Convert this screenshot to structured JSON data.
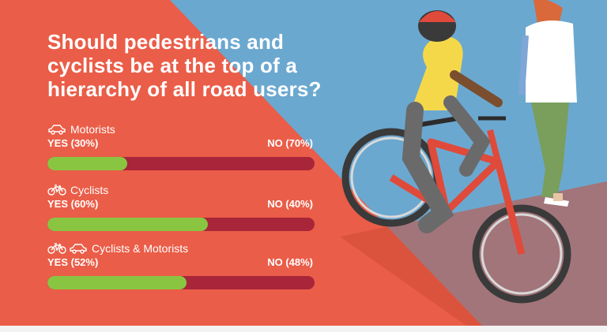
{
  "title": "Should pedestrians and cyclists be at the top of a hierarchy of all road users?",
  "colors": {
    "background_left": "#ea5d48",
    "background_right": "#6ba8d0",
    "yes": "#8ac542",
    "no": "#a8253a",
    "text": "#ffffff"
  },
  "chart_data": {
    "type": "bar",
    "orientation": "horizontal-stacked",
    "categories": [
      "Motorists",
      "Cyclists",
      "Cyclists & Motorists"
    ],
    "series": [
      {
        "name": "YES",
        "values": [
          30,
          60,
          52
        ]
      },
      {
        "name": "NO",
        "values": [
          70,
          40,
          48
        ]
      }
    ],
    "unit": "%",
    "xlim": [
      0,
      100
    ]
  },
  "groups": [
    {
      "label": "Motorists",
      "icons": [
        "car-icon"
      ],
      "yes_text": "YES (30%)",
      "no_text": "NO (70%)"
    },
    {
      "label": "Cyclists",
      "icons": [
        "bicycle-icon"
      ],
      "yes_text": "YES (60%)",
      "no_text": "NO (40%)"
    },
    {
      "label": "Cyclists & Motorists",
      "icons": [
        "bicycle-icon",
        "car-icon"
      ],
      "yes_text": "YES (52%)",
      "no_text": "NO (48%)"
    }
  ]
}
